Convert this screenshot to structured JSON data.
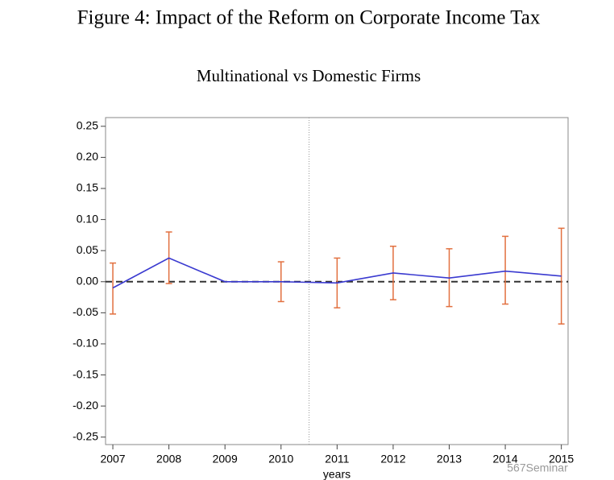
{
  "chart_data": {
    "type": "line-errorbar",
    "title": "Figure 4: Impact of the Reform on Corporate Income Tax",
    "subtitle": "Multinational vs Domestic Firms",
    "x_label": "years",
    "watermark": "567Seminar",
    "x": [
      2007,
      2008,
      2009,
      2010,
      2011,
      2012,
      2013,
      2014,
      2015
    ],
    "series": [
      {
        "color": "#3a3ad0",
        "error_color": "#e2703f",
        "values": [
          -0.01,
          0.038,
          0.0,
          0.0,
          -0.002,
          0.014,
          0.006,
          0.017,
          0.009
        ],
        "lower": [
          -0.052,
          -0.003,
          null,
          -0.032,
          -0.042,
          -0.029,
          -0.04,
          -0.036,
          -0.068
        ],
        "upper": [
          0.03,
          0.08,
          null,
          0.032,
          0.038,
          0.057,
          0.053,
          0.073,
          0.086
        ]
      }
    ],
    "xlim": [
      2006.87,
      2015.12
    ],
    "ylim": [
      -0.262,
      0.264
    ],
    "xticks": [
      2007,
      2008,
      2009,
      2010,
      2011,
      2012,
      2013,
      2014,
      2015
    ],
    "yticks": [
      {
        "value": 0.25,
        "label": "0.25"
      },
      {
        "value": 0.2,
        "label": "0.20"
      },
      {
        "value": 0.15,
        "label": "0.15"
      },
      {
        "value": 0.1,
        "label": "0.10"
      },
      {
        "value": 0.05,
        "label": "0.05"
      },
      {
        "value": 0,
        "label": "0.00"
      },
      {
        "value": -0.05,
        "label": "-0.05"
      },
      {
        "value": -0.1,
        "label": "-0.10"
      },
      {
        "value": -0.15,
        "label": "-0.15"
      },
      {
        "value": -0.2,
        "label": "-0.20"
      },
      {
        "value": -0.25,
        "label": "-0.25"
      }
    ],
    "reference_x": 2010.5,
    "reference_y": 0
  }
}
